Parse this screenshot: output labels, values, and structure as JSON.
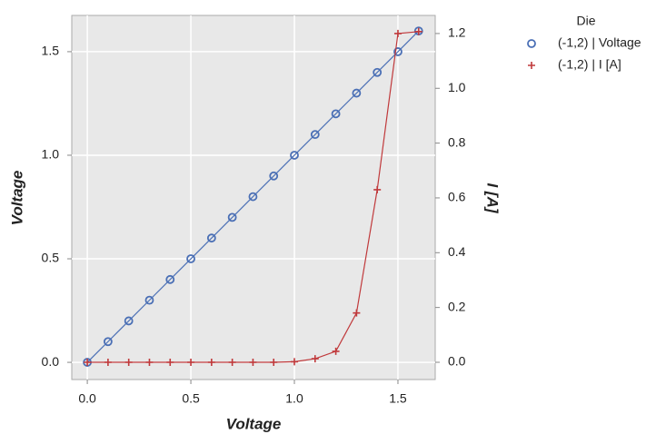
{
  "chart_data": {
    "type": "line",
    "xlabel": "Voltage",
    "ylabel": "Voltage",
    "y2label": "I [A]",
    "legend_title": "Die",
    "legend": "outside-right",
    "x": [
      0,
      0.1,
      0.2,
      0.3,
      0.4,
      0.5,
      0.6,
      0.7,
      0.8,
      0.9,
      1.0,
      1.1,
      1.2,
      1.3,
      1.4,
      1.5,
      1.6
    ],
    "series": [
      {
        "name": "(-1,2) | Voltage",
        "color": "#4a6fb5",
        "marker": "circle",
        "axis": "y",
        "values": [
          0,
          0.1,
          0.2,
          0.3,
          0.4,
          0.5,
          0.6,
          0.7,
          0.8,
          0.9,
          1.0,
          1.1,
          1.2,
          1.3,
          1.4,
          1.5,
          1.6
        ]
      },
      {
        "name": "(-1,2) | I [A]",
        "color": "#c0393b",
        "marker": "plus",
        "axis": "y2",
        "values": [
          0,
          0,
          0,
          0,
          0,
          0,
          0,
          0,
          0,
          0,
          0.002,
          0.013,
          0.04,
          0.18,
          0.63,
          1.2,
          1.207
        ]
      }
    ],
    "xlim": [
      -0.075,
      1.68
    ],
    "xticks": [
      {
        "value": 0,
        "label": "0.0"
      },
      {
        "value": 0.5,
        "label": "0.5"
      },
      {
        "value": 1,
        "label": "1.0"
      },
      {
        "value": 1.5,
        "label": "1.5"
      }
    ],
    "ylim": [
      -0.083,
      1.675
    ],
    "yticks": [
      {
        "value": 0,
        "label": "0.0"
      },
      {
        "value": 0.5,
        "label": "0.5"
      },
      {
        "value": 1,
        "label": "1.0"
      },
      {
        "value": 1.5,
        "label": "1.5"
      }
    ],
    "y2lim": [
      -0.063,
      1.266
    ],
    "y2ticks": [
      {
        "value": 0,
        "label": "0.0"
      },
      {
        "value": 0.2,
        "label": "0.2"
      },
      {
        "value": 0.4,
        "label": "0.4"
      },
      {
        "value": 0.6,
        "label": "0.6"
      },
      {
        "value": 0.8,
        "label": "0.8"
      },
      {
        "value": 1,
        "label": "1.0"
      },
      {
        "value": 1.2,
        "label": "1.2"
      }
    ],
    "grid": true,
    "background": "#e8e8e8"
  }
}
